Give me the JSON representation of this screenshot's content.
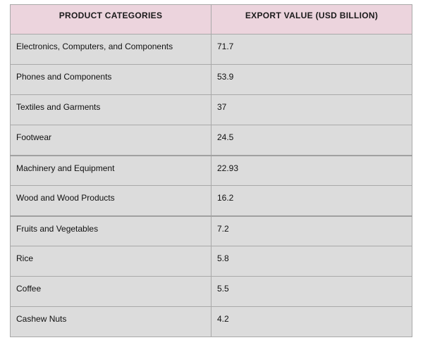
{
  "table": {
    "headers": {
      "category": "PRODUCT CATEGORIES",
      "value": "EXPORT VALUE (USD BILLION)"
    },
    "rows": [
      {
        "category": "Electronics, Computers, and Components",
        "value": "71.7"
      },
      {
        "category": "Phones and Components",
        "value": "53.9"
      },
      {
        "category": "Textiles and Garments",
        "value": "37"
      },
      {
        "category": "Footwear",
        "value": "24.5"
      },
      {
        "category": "Machinery and Equipment",
        "value": "22.93"
      },
      {
        "category": "Wood and Wood Products",
        "value": "16.2"
      },
      {
        "category": "Fruits and Vegetables",
        "value": "7.2"
      },
      {
        "category": "Rice",
        "value": "5.8"
      },
      {
        "category": "Coffee",
        "value": "5.5"
      },
      {
        "category": "Cashew Nuts",
        "value": "4.2"
      }
    ]
  },
  "colors": {
    "header_background": "#ecd4dd",
    "row_background": "#dcdcdc",
    "border": "#a9a9a9"
  }
}
